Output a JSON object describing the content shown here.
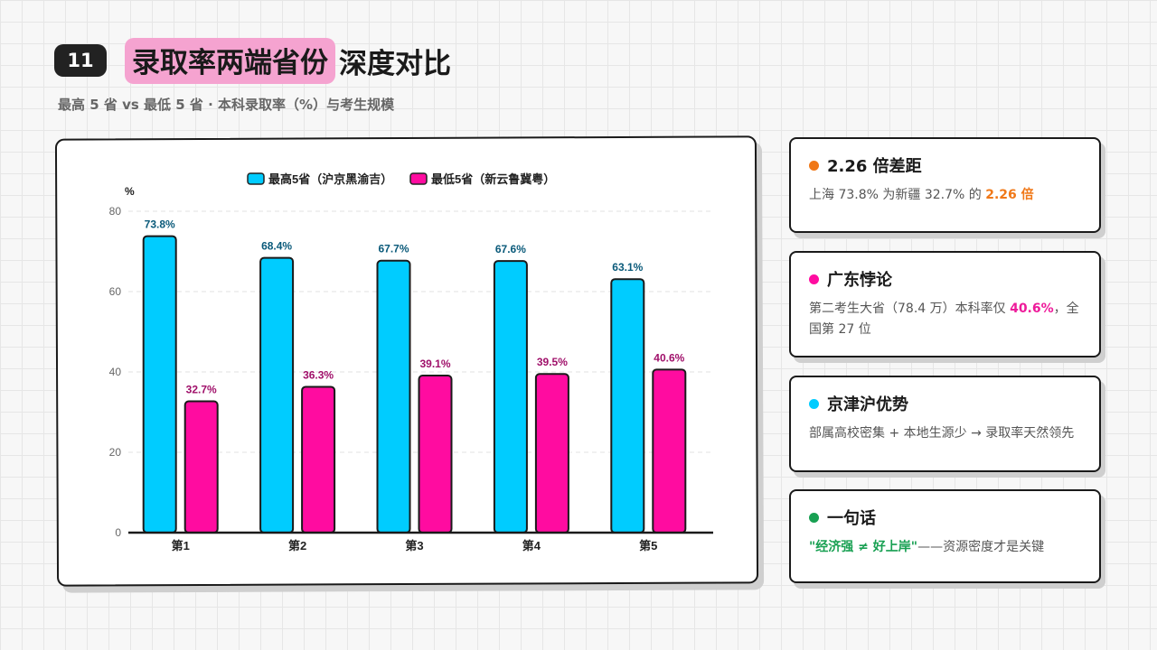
{
  "header": {
    "page_number": "11",
    "title_highlight": "录取率两端省份",
    "title_rest": "深度对比",
    "subtitle": "最高 5 省 vs 最低 5 省 · 本科录取率（%）与考生规模"
  },
  "colors": {
    "cyan": "#00ccff",
    "pink": "#ff0ca0",
    "orange": "#f07818",
    "green": "#18a052"
  },
  "chart_data": {
    "type": "bar",
    "categories": [
      "第1",
      "第2",
      "第3",
      "第4",
      "第5"
    ],
    "series": [
      {
        "name": "最高5省（沪京黑渝吉）",
        "values": [
          73.8,
          68.4,
          67.7,
          67.6,
          63.1
        ],
        "labels": [
          "73.8%",
          "68.4%",
          "67.7%",
          "67.6%",
          "63.1%"
        ]
      },
      {
        "name": "最低5省（新云鲁冀粤）",
        "values": [
          32.7,
          36.3,
          39.1,
          39.5,
          40.6
        ],
        "labels": [
          "32.7%",
          "36.3%",
          "39.1%",
          "39.5%",
          "40.6%"
        ]
      }
    ],
    "ylabel": "%",
    "ylim": [
      0,
      80
    ],
    "yticks": [
      "0",
      "20",
      "40",
      "60",
      "80"
    ],
    "grid": true,
    "legend": "top-center"
  },
  "cards": [
    {
      "title": "2.26 倍差距",
      "body_pre": "上海 73.8% 为新疆 32.7% 的 ",
      "body_hl": "2.26 倍",
      "body_post": ""
    },
    {
      "title": "广东悖论",
      "body_pre": "第二考生大省（78.4 万）本科率仅 ",
      "body_hl": "40.6%",
      "body_post": "，全国第 27 位"
    },
    {
      "title": "京津沪优势",
      "body_pre": "部属高校密集 + 本地生源少 → 录取率天然领先",
      "body_hl": "",
      "body_post": ""
    },
    {
      "title": "一句话",
      "body_pre": "",
      "body_hl": "\"经济强 ≠ 好上岸\"",
      "body_post": "——资源密度才是关键"
    }
  ]
}
